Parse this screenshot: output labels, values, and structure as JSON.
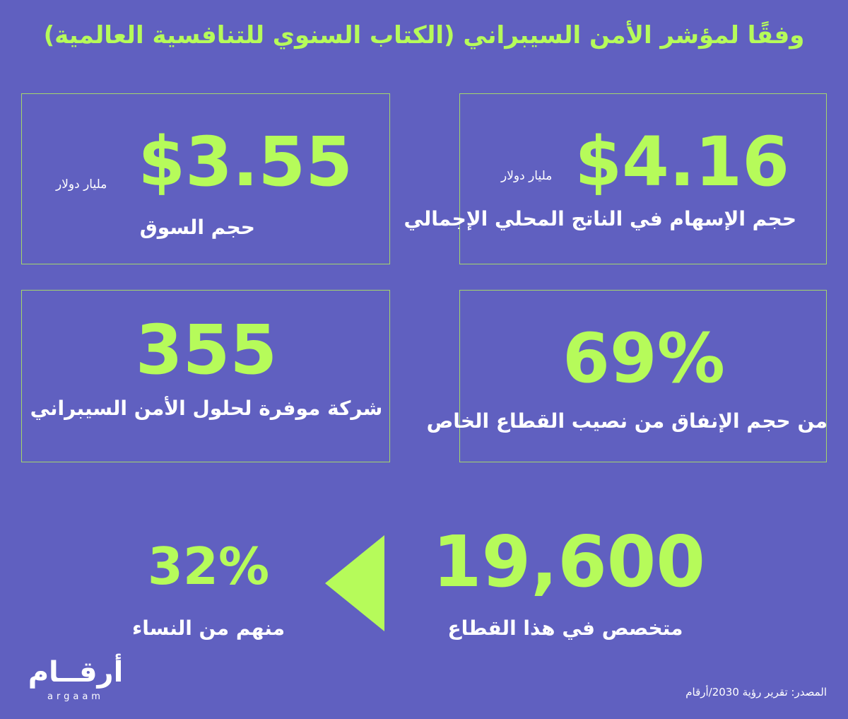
{
  "title": "وفقًا لمؤشر الأمن السيبراني (الكتاب السنوي للتنافسية العالمية)",
  "cards": {
    "gdp": {
      "value": "$4.16",
      "unit": "مليار دولار",
      "label": "حجم الإسهام في الناتج المحلي الإجمالي"
    },
    "market": {
      "value": "$3.55",
      "unit": "مليار دولار",
      "label": "حجم السوق"
    },
    "private": {
      "value": "69%",
      "label": "من حجم الإنفاق من نصيب القطاع الخاص"
    },
    "companies": {
      "value": "355",
      "label": "شركة موفرة لحلول الأمن السيبراني"
    }
  },
  "specialists": {
    "value": "19,600",
    "label": "متخصص في هذا القطاع"
  },
  "women": {
    "value": "32%",
    "label": "منهم من النساء"
  },
  "logo": {
    "main": "أرقــام",
    "sub": "argaam"
  },
  "source": "المصدر: تقرير رؤية 2030/أرقام",
  "colors": {
    "background": "#6060c0",
    "accent": "#b6fb5a",
    "text": "#ffffff"
  }
}
